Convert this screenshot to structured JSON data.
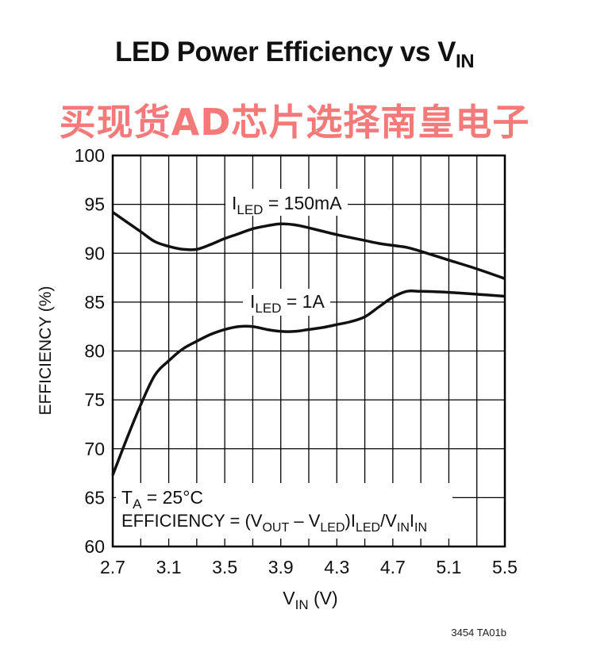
{
  "title": {
    "main": "LED Power Efficiency vs V",
    "sub": "IN"
  },
  "watermark": "买现货AD芯片选择南皇电子",
  "figure_code": "3454 TA01b",
  "chart_data": {
    "type": "line",
    "xlim": [
      2.7,
      5.5
    ],
    "ylim": [
      60,
      100
    ],
    "x_ticks": [
      "2.7",
      "3.1",
      "3.5",
      "3.9",
      "4.3",
      "4.7",
      "5.1",
      "5.5"
    ],
    "y_ticks": [
      "60",
      "65",
      "70",
      "75",
      "80",
      "85",
      "90",
      "95",
      "100"
    ],
    "xlabel": {
      "main": "V",
      "sub": "IN",
      "unit": " (V)"
    },
    "ylabel": "EFFICIENCY (%)",
    "grid": true,
    "series": [
      {
        "name": "150mA",
        "label": {
          "pre": "I",
          "sub": "LED",
          "post": " = 150mA"
        },
        "x": [
          2.7,
          2.8,
          2.9,
          3.0,
          3.1,
          3.2,
          3.3,
          3.4,
          3.5,
          3.6,
          3.7,
          3.8,
          3.9,
          4.0,
          4.1,
          4.3,
          4.5,
          4.6,
          4.7,
          4.8,
          4.9,
          5.1,
          5.3,
          5.5
        ],
        "y": [
          94.2,
          93.2,
          92.2,
          91.2,
          90.7,
          90.4,
          90.4,
          90.9,
          91.5,
          92.0,
          92.5,
          92.8,
          93.0,
          92.9,
          92.6,
          91.9,
          91.3,
          91.0,
          90.8,
          90.6,
          90.2,
          89.3,
          88.4,
          87.4
        ]
      },
      {
        "name": "1A",
        "label": {
          "pre": "I",
          "sub": "LED",
          "post": " = 1A"
        },
        "x": [
          2.7,
          2.8,
          2.9,
          3.0,
          3.1,
          3.2,
          3.3,
          3.4,
          3.5,
          3.6,
          3.7,
          3.8,
          3.9,
          4.0,
          4.1,
          4.2,
          4.3,
          4.4,
          4.5,
          4.6,
          4.7,
          4.8,
          4.9,
          5.1,
          5.3,
          5.5
        ],
        "y": [
          67.3,
          71.0,
          74.5,
          77.5,
          79.0,
          80.2,
          81.0,
          81.7,
          82.2,
          82.5,
          82.5,
          82.2,
          82.0,
          82.0,
          82.2,
          82.4,
          82.7,
          83.0,
          83.5,
          84.5,
          85.5,
          86.1,
          86.1,
          86.0,
          85.8,
          85.6
        ]
      }
    ],
    "annotations": {
      "ta": {
        "pre": "T",
        "sub": "A",
        "post": " = 25°C"
      },
      "formula": {
        "p1": "EFFICIENCY = (V",
        "s1": "OUT",
        "p2": " – V",
        "s2": "LED",
        "p3": ")I",
        "s3": "LED",
        "p4": "/V",
        "s4": "IN",
        "p5": "I",
        "s5": "IN"
      }
    }
  }
}
